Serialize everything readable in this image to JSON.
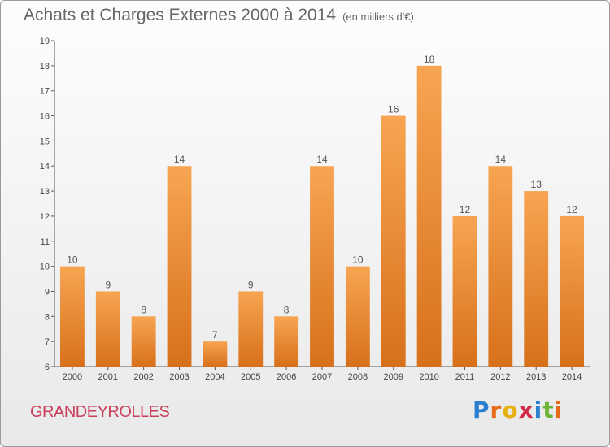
{
  "header": {
    "title": "Achats et Charges Externes 2000 à 2014",
    "unit": "(en milliers d'€)"
  },
  "footer": {
    "commune": "GRANDEYROLLES",
    "brand_letters": [
      "P",
      "r",
      "o",
      "x",
      "i",
      "t",
      "i"
    ],
    "brand_colors": [
      "#2a7fd0",
      "#e8691a",
      "#e8b010",
      "#d42b4a",
      "#2a7fd0",
      "#6cb43a",
      "#e8691a"
    ]
  },
  "chart_data": {
    "type": "bar",
    "title": "Achats et Charges Externes 2000 à 2014",
    "subtitle": "(en milliers d'€)",
    "categories": [
      "2000",
      "2001",
      "2002",
      "2003",
      "2004",
      "2005",
      "2006",
      "2007",
      "2008",
      "2009",
      "2010",
      "2011",
      "2012",
      "2013",
      "2014"
    ],
    "values": [
      10,
      9,
      8,
      14,
      7,
      9,
      8,
      14,
      10,
      16,
      18,
      12,
      14,
      13,
      12
    ],
    "ylim": [
      6,
      19
    ],
    "yticks": [
      6,
      7,
      8,
      9,
      10,
      11,
      12,
      13,
      14,
      15,
      16,
      17,
      18,
      19
    ],
    "grid": false,
    "bar_color": "#f0953a",
    "xlabel": "",
    "ylabel": ""
  }
}
